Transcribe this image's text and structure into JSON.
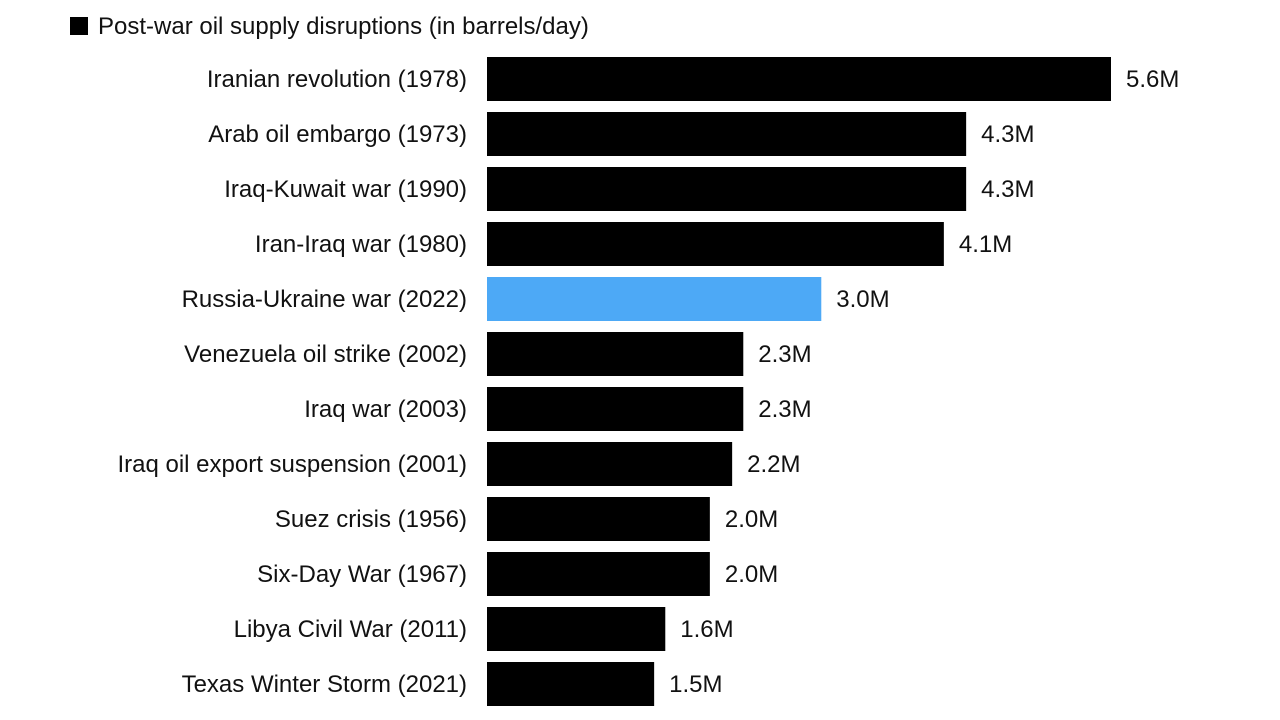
{
  "chart_data": {
    "type": "bar",
    "orientation": "horizontal",
    "title": "",
    "xlabel": "",
    "ylabel": "",
    "xlim": [
      0,
      5.6
    ],
    "grid": false,
    "legend": {
      "position": "top-left",
      "entries": [
        {
          "label": "Post-war oil supply disruptions (in barrels/day)",
          "color": "#000000"
        }
      ]
    },
    "categories": [
      "Iranian revolution (1978)",
      "Arab oil embargo (1973)",
      "Iraq-Kuwait war (1990)",
      "Iran-Iraq war (1980)",
      "Russia-Ukraine war (2022)",
      "Venezuela oil strike (2002)",
      "Iraq war (2003)",
      "Iraq oil export suspension (2001)",
      "Suez crisis (1956)",
      "Six-Day War (1967)",
      "Libya Civil War (2011)",
      "Texas Winter Storm (2021)"
    ],
    "values": [
      5.6,
      4.3,
      4.3,
      4.1,
      3.0,
      2.3,
      2.3,
      2.2,
      2.0,
      2.0,
      1.6,
      1.5
    ],
    "value_labels": [
      "5.6M",
      "4.3M",
      "4.3M",
      "4.1M",
      "3.0M",
      "2.3M",
      "2.3M",
      "2.2M",
      "2.0M",
      "2.0M",
      "1.6M",
      "1.5M"
    ],
    "units": "million barrels/day",
    "colors": {
      "default": "#000000",
      "highlight": "#4DA9F6"
    },
    "highlight_index": 4
  }
}
